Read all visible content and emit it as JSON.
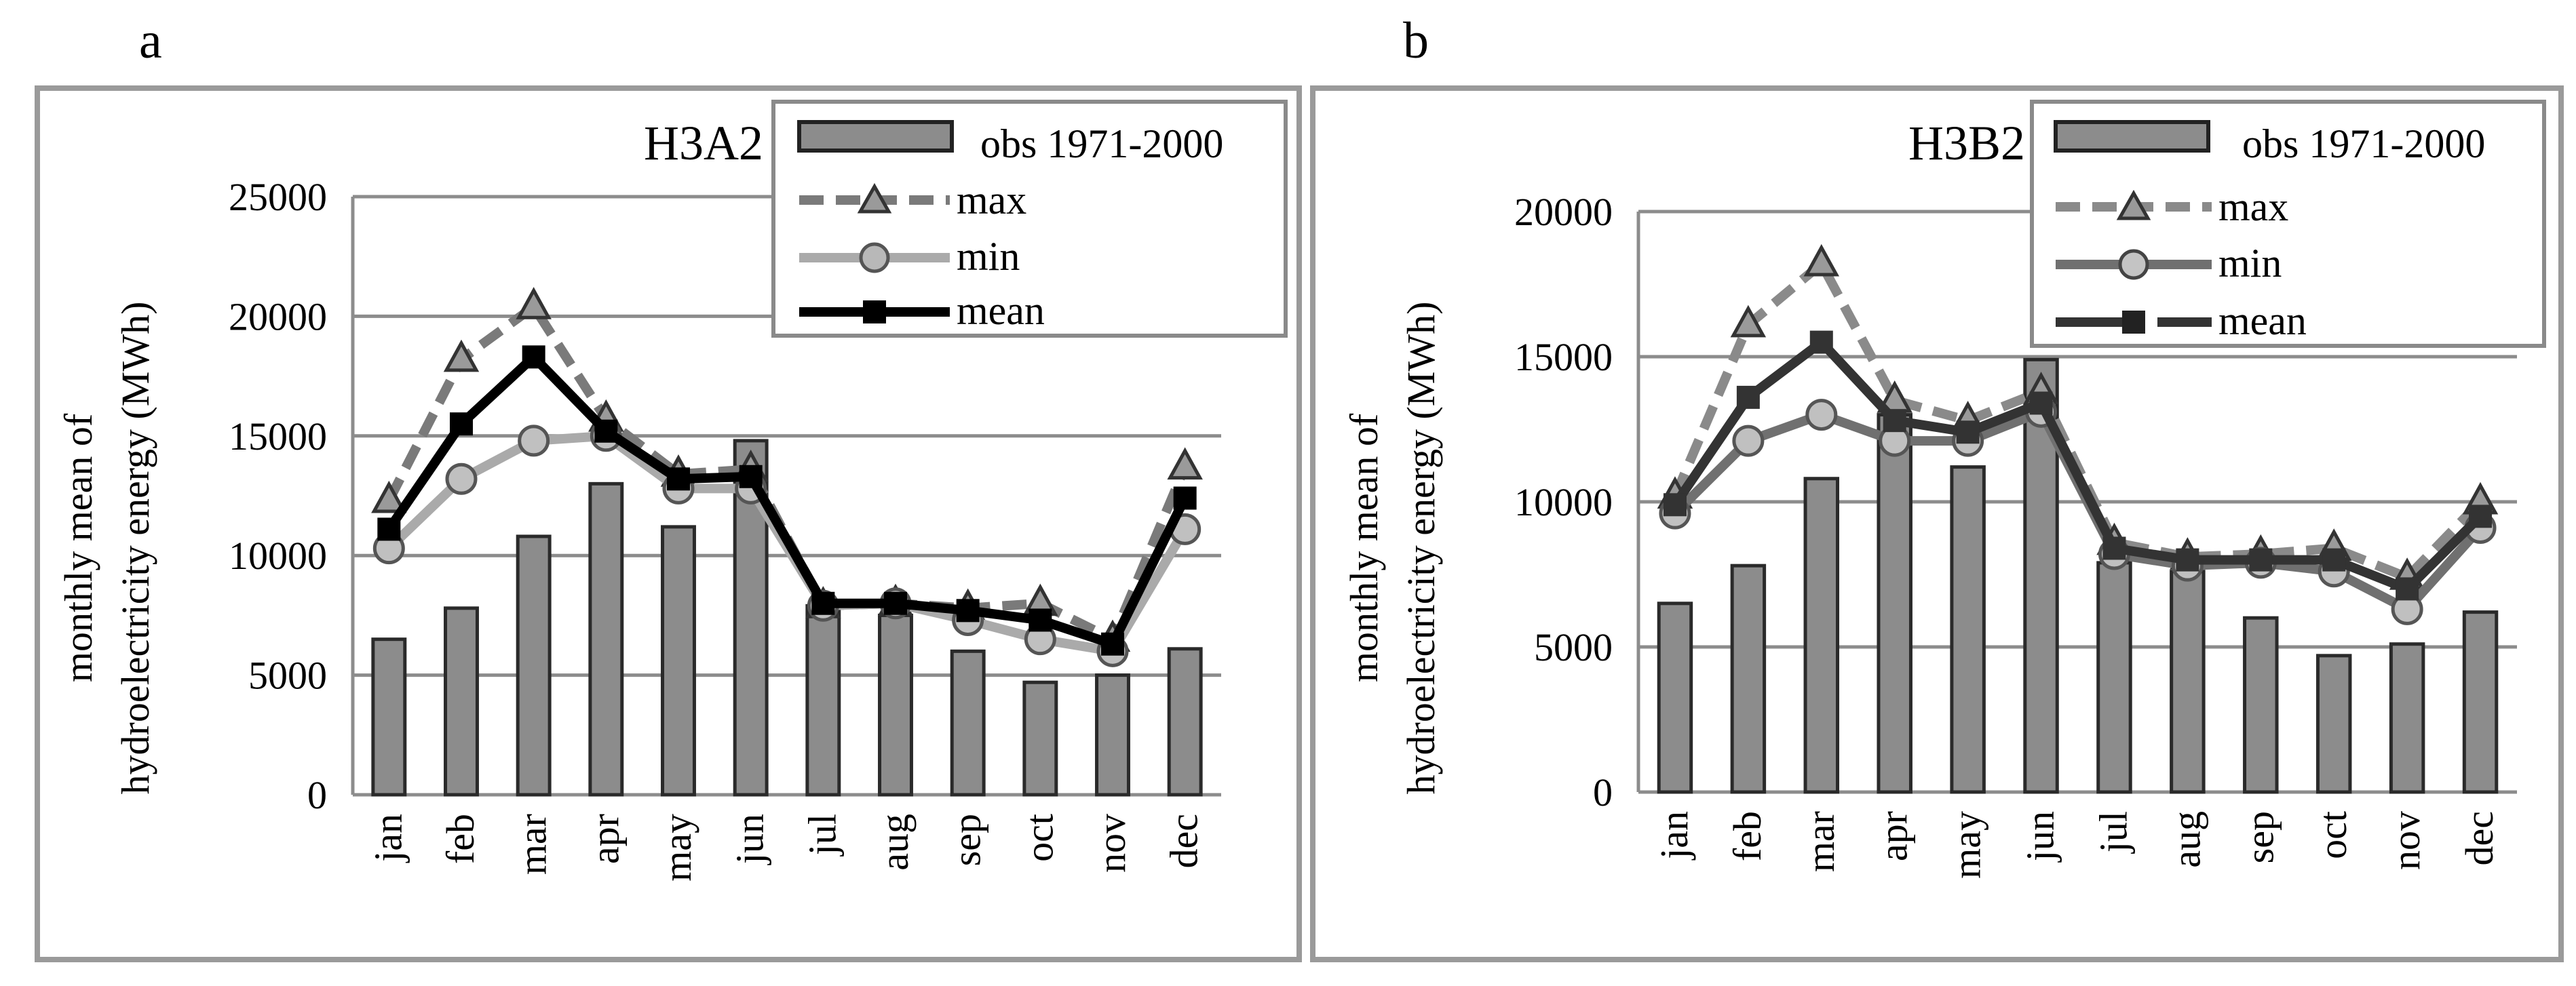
{
  "panels": [
    {
      "letter": "a",
      "chart_data": {
        "type": "bar+line",
        "title": "H3A2",
        "ylabel_line1": "monthly mean of",
        "ylabel_line2": "hydroelectricity energy (MWh)",
        "xlabel": "",
        "ylim": [
          0,
          25000
        ],
        "yticks": [
          0,
          5000,
          10000,
          15000,
          20000,
          25000
        ],
        "ytick_labels": [
          "0",
          "5000",
          "10000",
          "15000",
          "20000",
          "25000"
        ],
        "grid": true,
        "legend_position": "top-right",
        "categories": [
          "jan",
          "feb",
          "mar",
          "apr",
          "may",
          "jun",
          "jul",
          "aug",
          "sep",
          "oct",
          "nov",
          "dec"
        ],
        "bars": {
          "name": "obs 1971-2000",
          "color": "#8c8c8c",
          "values": [
            6500,
            7800,
            10800,
            13000,
            11200,
            14800,
            7900,
            7500,
            6000,
            4700,
            5000,
            6100
          ]
        },
        "series": [
          {
            "name": "max",
            "marker": "triangle",
            "color": "#7a7a7a",
            "style": "dashed",
            "values": [
              12300,
              18200,
              20400,
              15700,
              13400,
              13600,
              7900,
              8000,
              7800,
              8000,
              6500,
              13700
            ]
          },
          {
            "name": "min",
            "marker": "circle",
            "color": "#aaaaaa",
            "style": "solid",
            "values": [
              10300,
              13200,
              14800,
              15000,
              12800,
              12800,
              7900,
              8000,
              7300,
              6500,
              6000,
              11100
            ]
          },
          {
            "name": "mean",
            "marker": "square",
            "color": "#000000",
            "style": "solid",
            "values": [
              11100,
              15500,
              18300,
              15200,
              13200,
              13300,
              8000,
              8000,
              7700,
              7300,
              6300,
              12400
            ]
          }
        ]
      }
    },
    {
      "letter": "b",
      "chart_data": {
        "type": "bar+line",
        "title": "H3B2",
        "ylabel_line1": "monthly mean of",
        "ylabel_line2": "hydroelectricity energy (MWh)",
        "xlabel": "",
        "ylim": [
          0,
          20000
        ],
        "yticks": [
          0,
          5000,
          10000,
          15000,
          20000
        ],
        "ytick_labels": [
          "0",
          "5000",
          "10000",
          "15000",
          "20000"
        ],
        "grid": true,
        "legend_position": "top-right",
        "categories": [
          "jan",
          "feb",
          "mar",
          "apr",
          "may",
          "jun",
          "jul",
          "aug",
          "sep",
          "oct",
          "nov",
          "dec"
        ],
        "bars": {
          "name": "obs 1971-2000",
          "color": "#8c8c8c",
          "values": [
            6500,
            7800,
            10800,
            13000,
            11200,
            14900,
            7900,
            7600,
            6000,
            4700,
            5100,
            6200
          ]
        },
        "series": [
          {
            "name": "max",
            "marker": "triangle",
            "color": "#8a8a8a",
            "style": "dashed",
            "values": [
              10200,
              16100,
              18200,
              13500,
              12800,
              13800,
              8600,
              8100,
              8200,
              8400,
              7400,
              10000
            ]
          },
          {
            "name": "min",
            "marker": "circle",
            "color": "#707070",
            "style": "solid",
            "values": [
              9600,
              12100,
              13000,
              12100,
              12100,
              13100,
              8200,
              7800,
              7900,
              7600,
              6300,
              9100
            ]
          },
          {
            "name": "mean",
            "marker": "square",
            "color": "#333333",
            "style": "solid",
            "values": [
              9900,
              13600,
              15500,
              12800,
              12400,
              13400,
              8400,
              8000,
              8000,
              8000,
              7000,
              9500
            ]
          }
        ]
      }
    }
  ]
}
